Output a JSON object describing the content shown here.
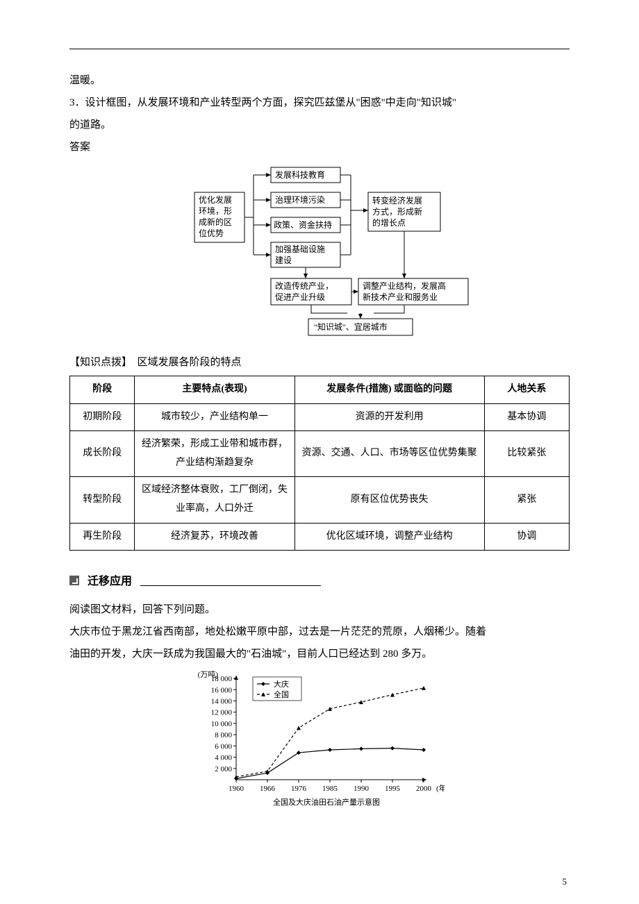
{
  "top_text": {
    "line1": "温暖。",
    "line2": "3．设计框图，从发展环境和产业转型两个方面，探究匹兹堡从\"困惑\"中走向\"知识城\"",
    "line3": "的道路。",
    "answer_label": "答案"
  },
  "flowchart": {
    "left_box": [
      "优化发展",
      "环境，形",
      "成新的区",
      "位优势"
    ],
    "mid_boxes": {
      "b1": "发展科技教育",
      "b2": "治理环境污染",
      "b3": "政策、资金扶持",
      "b4_l1": "加强基础设施",
      "b4_l2": "建设"
    },
    "right_box": [
      "转变经济发展",
      "方式，形成新",
      "的增长点"
    ],
    "lower_left": [
      "改造传统产业，",
      "促进产业升级"
    ],
    "lower_right": [
      "调整产业结构，发展高",
      "新技术产业和服务业"
    ],
    "bottom": "\"知识城\"、宜居城市",
    "colors": {
      "stroke": "#000000",
      "fill": "#ffffff",
      "text": "#000000"
    }
  },
  "knowledge_point": {
    "label": "【知识点拨】",
    "title": "区域发展各阶段的特点"
  },
  "stage_table": {
    "headers": [
      "阶段",
      "主要特点(表现)",
      "发展条件(措施) 或面临的问题",
      "人地关系"
    ],
    "rows": [
      [
        "初期阶段",
        "城市较少，产业结构单一",
        "资源的开发利用",
        "基本协调"
      ],
      [
        "成长阶段",
        "经济繁荣，形成工业带和城市群，产业结构渐趋复杂",
        "资源、交通、人口、市场等区位优势集聚",
        "比较紧张"
      ],
      [
        "转型阶段",
        "区域经济整体衰败，工厂倒闭，失业率高，人口外迁",
        "原有区位优势丧失",
        "紧张"
      ],
      [
        "再生阶段",
        "经济复苏，环境改善",
        "优化区域环境，调整产业结构",
        "协调"
      ]
    ],
    "col_widths_pct": [
      13,
      32,
      38,
      17
    ],
    "border_color": "#000000"
  },
  "section": {
    "title": "迁移应用"
  },
  "reading": {
    "p1": "阅读图文材料，回答下列问题。",
    "p2": "大庆市位于黑龙江省西南部，地处松嫩平原中部，过去是一片茫茫的荒原，人烟稀少。随着",
    "p3": "油田的开发，大庆一跃成为我国最大的\"石油城\"，目前人口已经达到 280 多万。"
  },
  "oil_chart": {
    "type": "line",
    "title": "全国及大庆油田石油产量示意图",
    "y_label": "(万吨)",
    "x_label": "(年)",
    "x_categories": [
      "1960",
      "1966",
      "1976",
      "1985",
      "1990",
      "1995",
      "2000"
    ],
    "y_ticks": [
      2000,
      4000,
      6000,
      8000,
      10000,
      12000,
      14000,
      16000,
      18000
    ],
    "ylim": [
      0,
      18500
    ],
    "series": [
      {
        "name": "大庆",
        "marker": "diamond",
        "dash": false,
        "values": [
          200,
          1200,
          4800,
          5300,
          5500,
          5600,
          5300
        ]
      },
      {
        "name": "全国",
        "marker": "triangle",
        "dash": true,
        "values": [
          500,
          1500,
          9200,
          12600,
          13800,
          15100,
          16300
        ]
      }
    ],
    "legend_position": "top-left-inside",
    "background_color": "#ffffff",
    "axis_color": "#000000",
    "series_color": "#000000",
    "font_size": 11
  },
  "page_number": "5"
}
